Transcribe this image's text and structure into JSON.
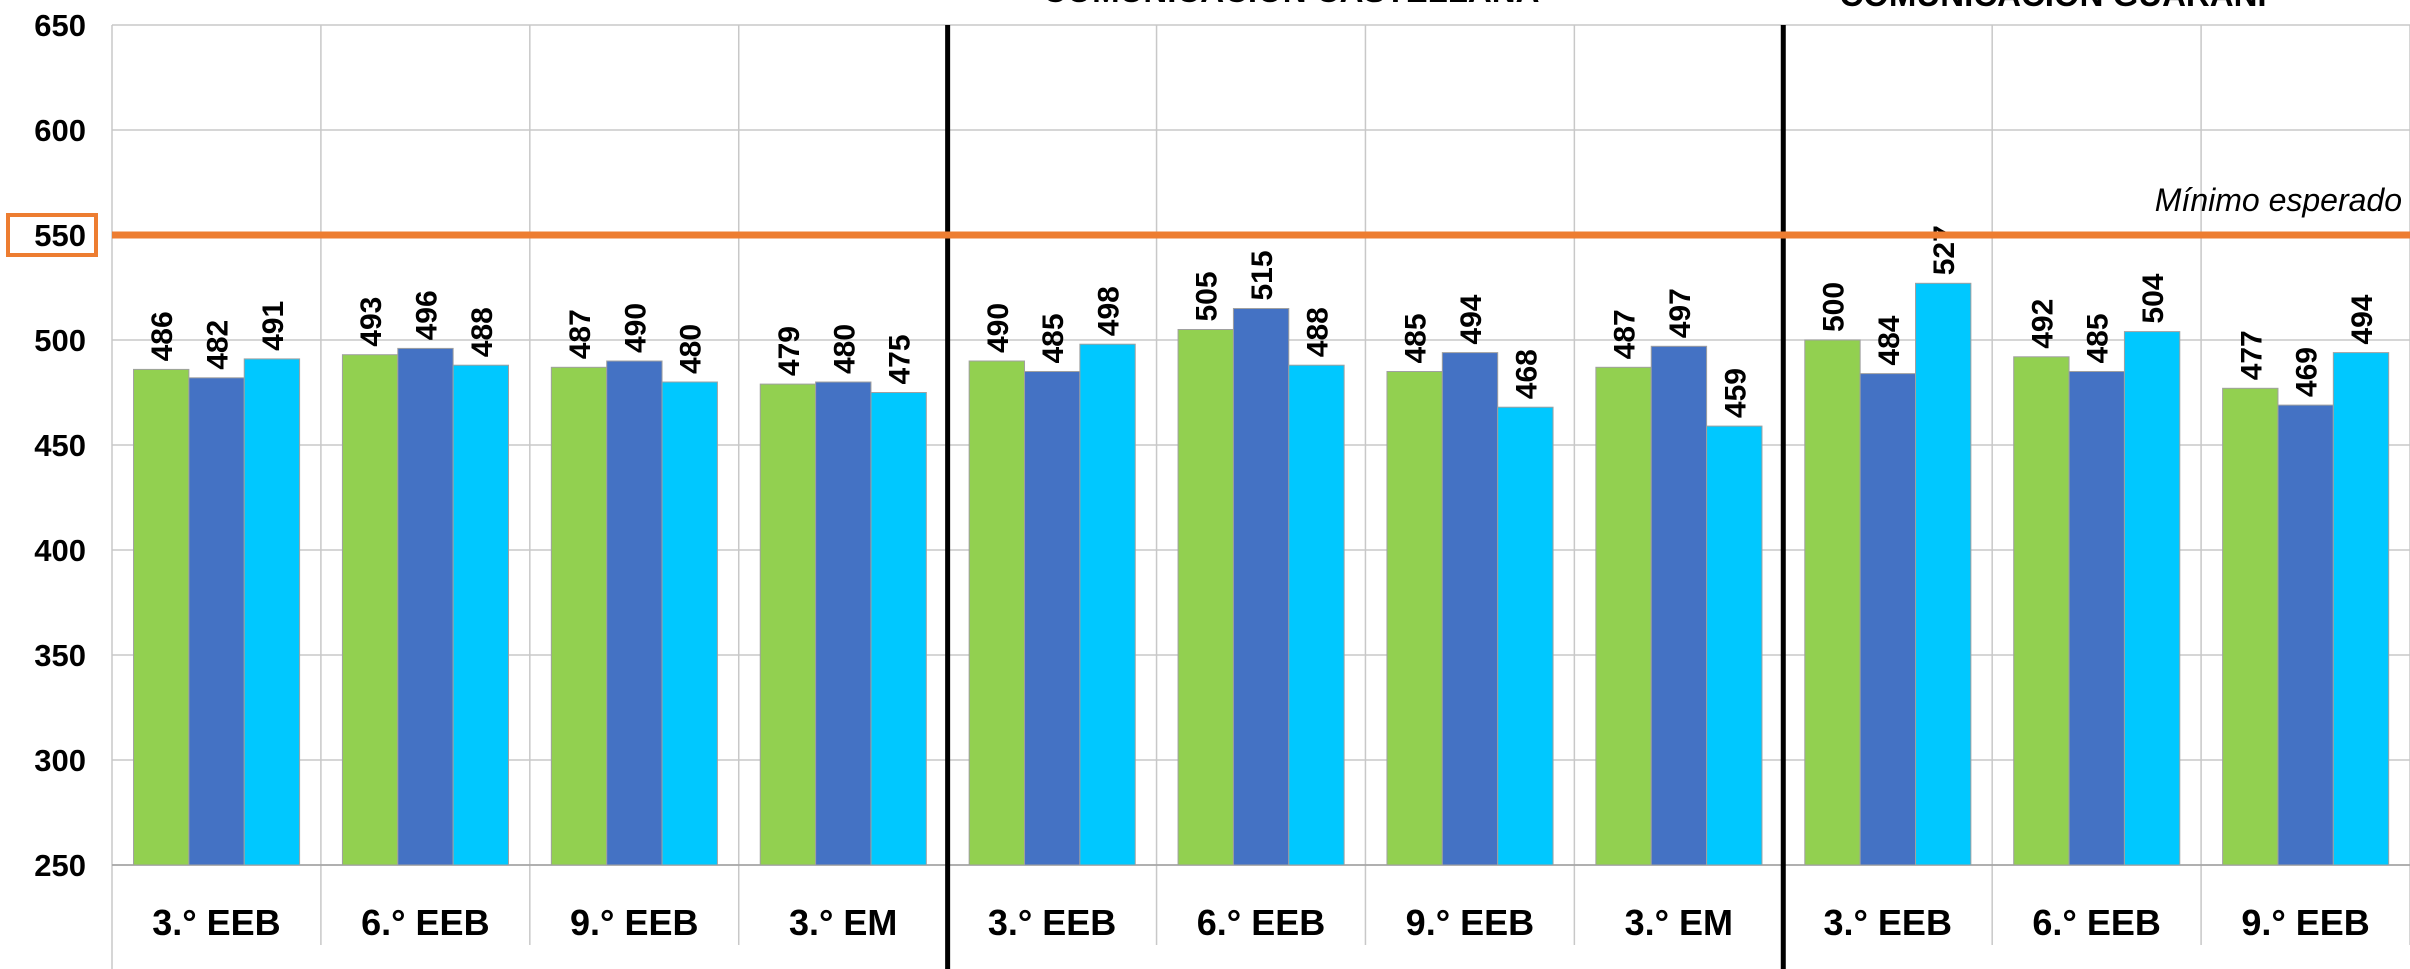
{
  "chart_data": {
    "type": "bar",
    "group_titles": [
      "COMUNICACIÓN CASTELLANA",
      "COMUNICACIÓN GUARANÍ"
    ],
    "categories": [
      "3.° EEB",
      "6.° EEB",
      "9.° EEB",
      "3.° EM",
      "3.° EEB",
      "6.° EEB",
      "9.° EEB",
      "3.° EM",
      "3.° EEB",
      "6.° EEB",
      "9.° EEB"
    ],
    "series": [
      {
        "color": "#92d050",
        "values": [
          486,
          493,
          487,
          479,
          490,
          505,
          485,
          487,
          500,
          492,
          477
        ]
      },
      {
        "color": "#4472c4",
        "values": [
          482,
          496,
          490,
          480,
          485,
          515,
          494,
          497,
          484,
          485,
          469
        ]
      },
      {
        "color": "#00c8ff",
        "values": [
          491,
          488,
          480,
          475,
          498,
          488,
          468,
          459,
          527,
          504,
          494
        ]
      }
    ],
    "ylim": [
      250,
      650
    ],
    "yticks": [
      250,
      300,
      350,
      400,
      450,
      500,
      550,
      600,
      650
    ],
    "grid": true,
    "reference_line": {
      "value": 550,
      "label": "Mínimo esperado",
      "color": "#ed7d31"
    }
  }
}
